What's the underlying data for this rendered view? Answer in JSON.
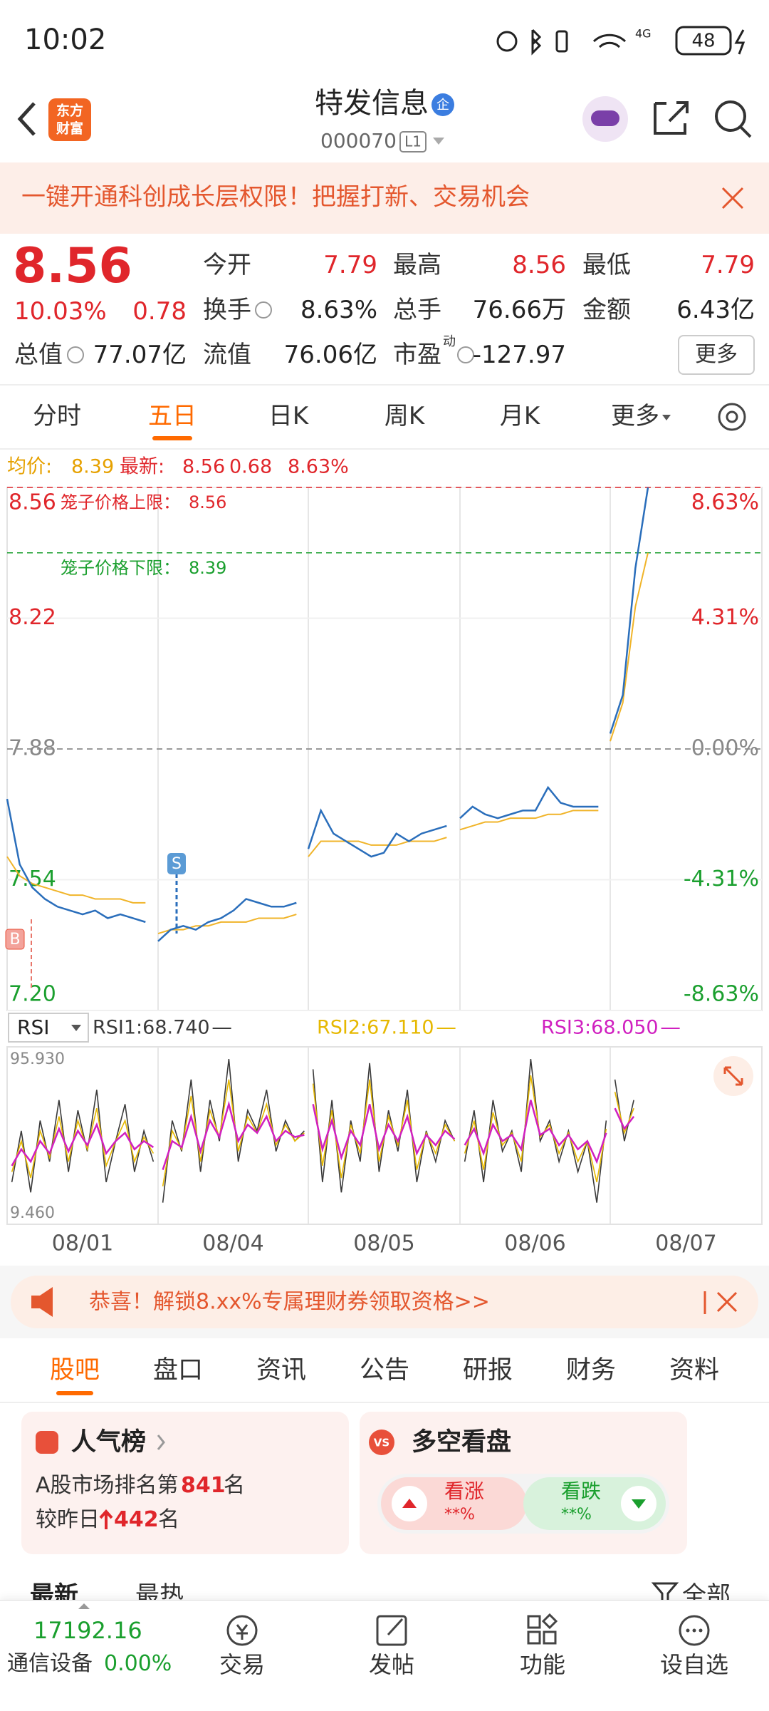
{
  "status_bar": {
    "time": "10:02",
    "network": "4G",
    "battery": "48"
  },
  "header": {
    "logo": [
      "东方",
      "财富"
    ],
    "title": "特发信息",
    "badge": "企",
    "code": "000070",
    "level": "L1"
  },
  "banner": {
    "text": "一键开通科创成长层权限！把握打新、交易机会"
  },
  "quote": {
    "price": "8.56",
    "change_pct": "10.03%",
    "change": "0.78",
    "fields": [
      {
        "label": "今开",
        "value": "7.79"
      },
      {
        "label": "最高",
        "value": "8.56"
      },
      {
        "label": "最低",
        "value": "7.79"
      },
      {
        "label": "换手",
        "value": "8.63%"
      },
      {
        "label": "总手",
        "value": "76.66万"
      },
      {
        "label": "金额",
        "value": "6.43亿"
      },
      {
        "label": "总值",
        "value": "77.07亿"
      },
      {
        "label": "流值",
        "value": "76.06亿"
      },
      {
        "label": "市盈",
        "value": "-127.97",
        "sup": "动"
      }
    ],
    "more": "更多"
  },
  "tabs": {
    "items": [
      "分时",
      "五日",
      "日K",
      "周K",
      "月K",
      "更多"
    ],
    "selected": 1
  },
  "info": {
    "avg_label": "均价:",
    "avg": "8.39",
    "latest_label": "最新:",
    "latest": "8.56",
    "change": "0.68",
    "turnover": "8.63%"
  },
  "price_chart": {
    "ylim": [
      7.2,
      8.56
    ],
    "yticks": [
      8.56,
      8.22,
      7.88,
      7.54,
      {
        "value": 7.2,
        "label": "7.20"
      }
    ],
    "y2lim": [
      -8.63,
      8.63
    ],
    "y2ticks": [
      {
        "value": 8.63,
        "label": "8.63%"
      },
      {
        "value": 4.31,
        "label": "4.31%"
      },
      {
        "value": 0,
        "label": "0.00%"
      },
      {
        "value": -4.31,
        "label": "-4.31%"
      },
      {
        "value": -8.63,
        "label": "-8.63%"
      }
    ],
    "upper_limit": {
      "label": "笼子价格上限：",
      "value": 8.56
    },
    "lower_limit": {
      "label": "笼子价格下限：",
      "value": 8.39
    },
    "markers": [
      "B",
      "S"
    ],
    "line_color": "#2a6ebb",
    "avg_color": "#f0b429",
    "days": [
      {
        "date": "08/01",
        "price": [
          7.75,
          7.58,
          7.52,
          7.49,
          7.47,
          7.46,
          7.45,
          7.46,
          7.44,
          7.45,
          7.44,
          7.43
        ],
        "avg": [
          7.6,
          7.55,
          7.53,
          7.52,
          7.51,
          7.5,
          7.5,
          7.49,
          7.49,
          7.49,
          7.48,
          7.48
        ]
      },
      {
        "date": "08/04",
        "price": [
          7.38,
          7.41,
          7.42,
          7.41,
          7.43,
          7.44,
          7.46,
          7.49,
          7.48,
          7.47,
          7.47,
          7.48
        ],
        "avg": [
          7.4,
          7.41,
          7.41,
          7.42,
          7.42,
          7.43,
          7.43,
          7.43,
          7.44,
          7.44,
          7.44,
          7.45
        ]
      },
      {
        "date": "08/05",
        "price": [
          7.62,
          7.72,
          7.66,
          7.64,
          7.62,
          7.6,
          7.61,
          7.66,
          7.64,
          7.66,
          7.67,
          7.68
        ],
        "avg": [
          7.6,
          7.64,
          7.64,
          7.64,
          7.64,
          7.63,
          7.63,
          7.63,
          7.64,
          7.64,
          7.64,
          7.65
        ]
      },
      {
        "date": "08/06",
        "price": [
          7.7,
          7.73,
          7.71,
          7.7,
          7.71,
          7.72,
          7.72,
          7.78,
          7.74,
          7.73,
          7.73,
          7.73
        ],
        "avg": [
          7.67,
          7.68,
          7.69,
          7.69,
          7.7,
          7.7,
          7.7,
          7.71,
          7.71,
          7.72,
          7.72,
          7.72
        ]
      },
      {
        "date": "08/07",
        "price": [
          7.92,
          8.02,
          8.35,
          8.56
        ],
        "avg": [
          7.9,
          8.0,
          8.25,
          8.39
        ]
      }
    ]
  },
  "rsi": {
    "selector": "RSI",
    "ylim": [
      9.46,
      95.93
    ],
    "yticks": [
      {
        "value": 95.93,
        "label": "95.930"
      },
      {
        "value": 9.46,
        "label": "9.460"
      }
    ],
    "series": [
      {
        "label": "RSI1:68.740",
        "color": "#3a3a3a",
        "days": [
          [
            30,
            55,
            25,
            60,
            40,
            70,
            35,
            65,
            45,
            75,
            30,
            50,
            68,
            35,
            55,
            40
          ],
          [
            20,
            60,
            45,
            80,
            35,
            70,
            50,
            90,
            40,
            65,
            55,
            75,
            45,
            60,
            50,
            55
          ],
          [
            85,
            30,
            70,
            25,
            60,
            40,
            88,
            35,
            65,
            45,
            75,
            30,
            55,
            40,
            60,
            50
          ],
          [
            40,
            65,
            30,
            70,
            45,
            55,
            35,
            90,
            50,
            60,
            40,
            55,
            35,
            50,
            20,
            60
          ],
          [
            80,
            50,
            70
          ]
        ]
      },
      {
        "label": "RSI2:67.110",
        "color": "#e6b800",
        "days": [
          [
            35,
            50,
            32,
            55,
            42,
            62,
            40,
            60,
            46,
            66,
            38,
            50,
            60,
            40,
            52,
            44
          ],
          [
            28,
            55,
            46,
            72,
            40,
            65,
            52,
            80,
            45,
            62,
            54,
            68,
            48,
            58,
            50,
            54
          ],
          [
            78,
            38,
            65,
            32,
            58,
            44,
            80,
            40,
            62,
            48,
            70,
            36,
            54,
            44,
            58,
            50
          ],
          [
            44,
            60,
            36,
            64,
            48,
            54,
            40,
            82,
            52,
            58,
            44,
            54,
            40,
            50,
            30,
            56
          ],
          [
            74,
            54,
            66
          ]
        ]
      },
      {
        "label": "RSI3:68.050",
        "color": "#d020c0",
        "days": [
          [
            38,
            46,
            40,
            50,
            44,
            56,
            45,
            55,
            48,
            58,
            44,
            50,
            54,
            46,
            50,
            47
          ],
          [
            36,
            50,
            47,
            62,
            45,
            60,
            52,
            68,
            50,
            58,
            54,
            62,
            50,
            55,
            52,
            53
          ],
          [
            68,
            46,
            60,
            42,
            55,
            48,
            68,
            46,
            58,
            50,
            62,
            44,
            53,
            48,
            55,
            51
          ],
          [
            48,
            56,
            44,
            58,
            50,
            53,
            46,
            70,
            53,
            56,
            48,
            53,
            46,
            50,
            40,
            54
          ],
          [
            66,
            56,
            62
          ]
        ]
      }
    ]
  },
  "promo": {
    "text": "恭喜！解锁8.xx%专属理财券领取资格>>"
  },
  "section_tabs": {
    "items": [
      "股吧",
      "盘口",
      "资讯",
      "公告",
      "研报",
      "财务",
      "资料"
    ],
    "selected": 0
  },
  "cards": {
    "popularity": {
      "title": "人气榜",
      "rank_prefix": "A股市场排名第",
      "rank": "841",
      "rank_suffix": "名",
      "change_prefix": "较昨日",
      "change": "442",
      "change_suffix": "名"
    },
    "sentiment": {
      "title": "多空看盘",
      "icon": "VS",
      "bull": "看涨",
      "bull_value": "**%",
      "bear": "看跌",
      "bear_value": "**%"
    }
  },
  "feed": {
    "sort": [
      "最新",
      "最热"
    ],
    "filter": "全部"
  },
  "bottom_bar": {
    "index_value": "17192.16",
    "sector": "通信设备",
    "sector_change": "0.00%",
    "items": [
      "交易",
      "发帖",
      "功能",
      "设自选"
    ]
  }
}
